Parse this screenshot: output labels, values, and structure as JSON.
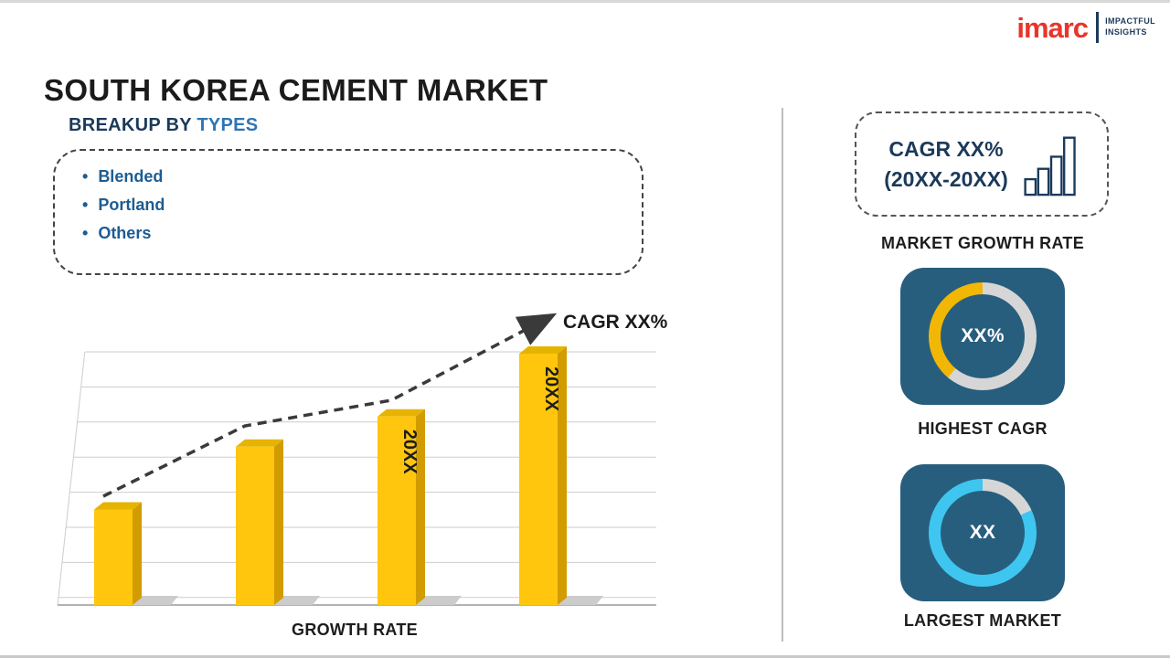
{
  "header": {
    "title": "SOUTH KOREA CEMENT MARKET",
    "logo": {
      "brand": "imarc",
      "tagline1": "IMPACTFUL",
      "tagline2": "INSIGHTS"
    }
  },
  "breakup": {
    "heading_prefix": "BREAKUP BY",
    "heading_highlight": "TYPES",
    "items": [
      "Blended",
      "Portland",
      "Others"
    ]
  },
  "chart_data": {
    "type": "bar",
    "categories": [
      "",
      "",
      "20XX",
      "20XX"
    ],
    "values": [
      38,
      63,
      75,
      100
    ],
    "bar_labels": [
      "",
      "",
      "20XX",
      "20XX"
    ],
    "trend_label": "CAGR XX%",
    "xlabel": "GROWTH RATE",
    "ylim": [
      0,
      100
    ],
    "grid": true,
    "legend": "none",
    "colors": {
      "bar_front": "#FFC60D",
      "bar_side": "#D29C00",
      "bar_top": "#E6B400",
      "trend": "#3a3a3a"
    }
  },
  "right_panel": {
    "growth_box": {
      "line1": "CAGR XX%",
      "line2": "(20XX-20XX)",
      "icon": "bar-chart-icon"
    },
    "growth_label": "MARKET GROWTH RATE",
    "donuts": [
      {
        "value": "XX%",
        "label": "HIGHEST CAGR",
        "arc_color": "#F2B705",
        "gray_color": "#d6d6d6",
        "gray_deg": 220,
        "card_color": "#285E7D"
      },
      {
        "value": "XX",
        "label": "LARGEST MARKET",
        "arc_color": "#3EC6F0",
        "gray_color": "#d6d6d6",
        "gray_deg": 65,
        "card_color": "#285E7D"
      }
    ]
  }
}
